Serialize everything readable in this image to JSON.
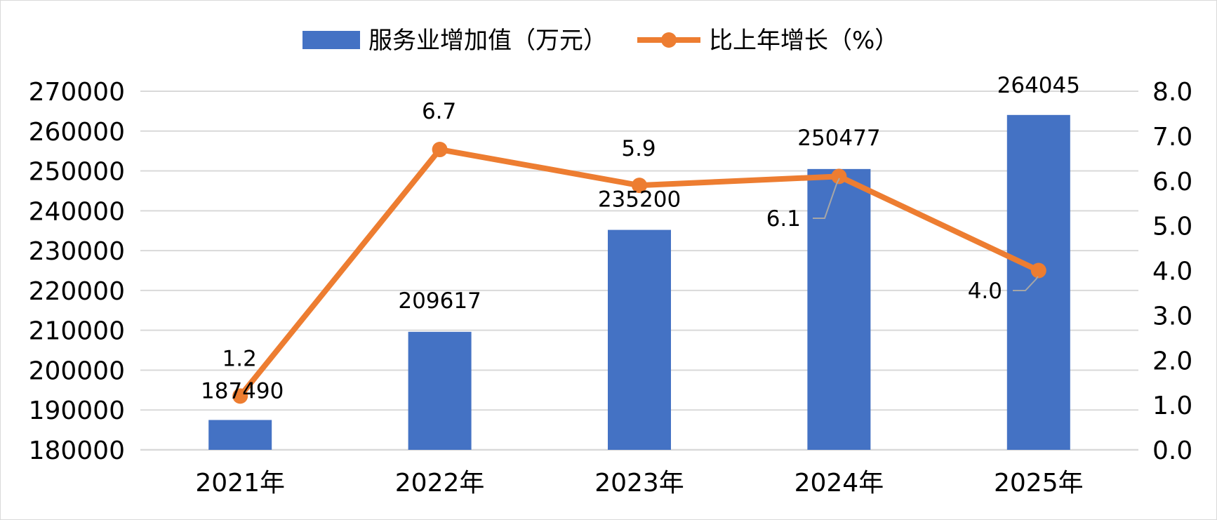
{
  "chart_data": {
    "type": "bar",
    "categories": [
      "2021年",
      "2022年",
      "2023年",
      "2024年",
      "2025年"
    ],
    "series": [
      {
        "name": "服务业增加值（万元）",
        "type": "bar",
        "axis": "left",
        "color": "#4472c4",
        "values": [
          187490,
          209617,
          235200,
          250477,
          264045
        ],
        "labels": [
          "187490",
          "209617",
          "235200",
          "250477",
          "264045"
        ]
      },
      {
        "name": "比上年增长（%）",
        "type": "line",
        "axis": "right",
        "color": "#ed7d31",
        "values": [
          1.2,
          6.7,
          5.9,
          6.1,
          4.0
        ],
        "labels": [
          "1.2",
          "6.7",
          "5.9",
          "6.1",
          "4.0"
        ]
      }
    ],
    "y_left": {
      "range": [
        180000,
        270000
      ],
      "ticks": [
        "180000",
        "190000",
        "200000",
        "210000",
        "220000",
        "230000",
        "240000",
        "250000",
        "260000",
        "270000"
      ]
    },
    "y_right": {
      "range": [
        0,
        8
      ],
      "ticks": [
        "0.0",
        "1.0",
        "2.0",
        "3.0",
        "4.0",
        "5.0",
        "6.0",
        "7.0",
        "8.0"
      ]
    },
    "grid": true,
    "legend": "top-center",
    "gridColor": "#d9d9d9",
    "leaderColor": "#a6a6a6"
  }
}
